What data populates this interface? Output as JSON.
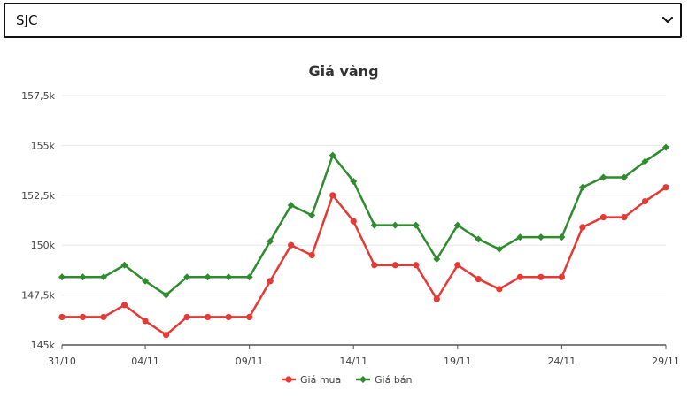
{
  "select": {
    "value": "SJC",
    "icon": "chevron-down-icon"
  },
  "chart_data": {
    "type": "line",
    "title": "Giá vàng",
    "xlabel": "",
    "ylabel": "",
    "ylim": [
      145000,
      157500
    ],
    "yticks": [
      145000,
      147500,
      150000,
      152500,
      155000,
      157500
    ],
    "ytick_labels": [
      "145k",
      "147,5k",
      "150k",
      "152,5k",
      "155k",
      "157,5k"
    ],
    "x": [
      "31/10",
      "01/11",
      "02/11",
      "03/11",
      "04/11",
      "05/11",
      "06/11",
      "07/11",
      "08/11",
      "09/11",
      "10/11",
      "11/11",
      "12/11",
      "13/11",
      "14/11",
      "15/11",
      "16/11",
      "17/11",
      "18/11",
      "19/11",
      "20/11",
      "21/11",
      "22/11",
      "23/11",
      "24/11",
      "25/11",
      "26/11",
      "27/11",
      "28/11",
      "29/11"
    ],
    "x_tick_labels": [
      {
        "index": 0,
        "label": "31/10"
      },
      {
        "index": 4,
        "label": "04/11"
      },
      {
        "index": 9,
        "label": "09/11"
      },
      {
        "index": 14,
        "label": "14/11"
      },
      {
        "index": 19,
        "label": "19/11"
      },
      {
        "index": 24,
        "label": "24/11"
      },
      {
        "index": 29,
        "label": "29/11"
      }
    ],
    "grid": true,
    "legend": "bottom-center",
    "series": [
      {
        "name": "Giá mua",
        "color": "#e53935",
        "marker": "circle",
        "values": [
          146400,
          146400,
          146400,
          147000,
          146200,
          145500,
          146400,
          146400,
          146400,
          146400,
          148200,
          150000,
          149500,
          152500,
          151200,
          149000,
          149000,
          149000,
          147300,
          149000,
          148300,
          147800,
          148400,
          148400,
          148400,
          150900,
          151400,
          151400,
          152200,
          152900
        ]
      },
      {
        "name": "Giá bán",
        "color": "#2e8b2e",
        "marker": "diamond",
        "values": [
          148400,
          148400,
          148400,
          149000,
          148200,
          147500,
          148400,
          148400,
          148400,
          148400,
          150200,
          152000,
          151500,
          154500,
          153200,
          151000,
          151000,
          151000,
          149300,
          151000,
          150300,
          149800,
          150400,
          150400,
          150400,
          152900,
          153400,
          153400,
          154200,
          154900
        ]
      }
    ]
  }
}
